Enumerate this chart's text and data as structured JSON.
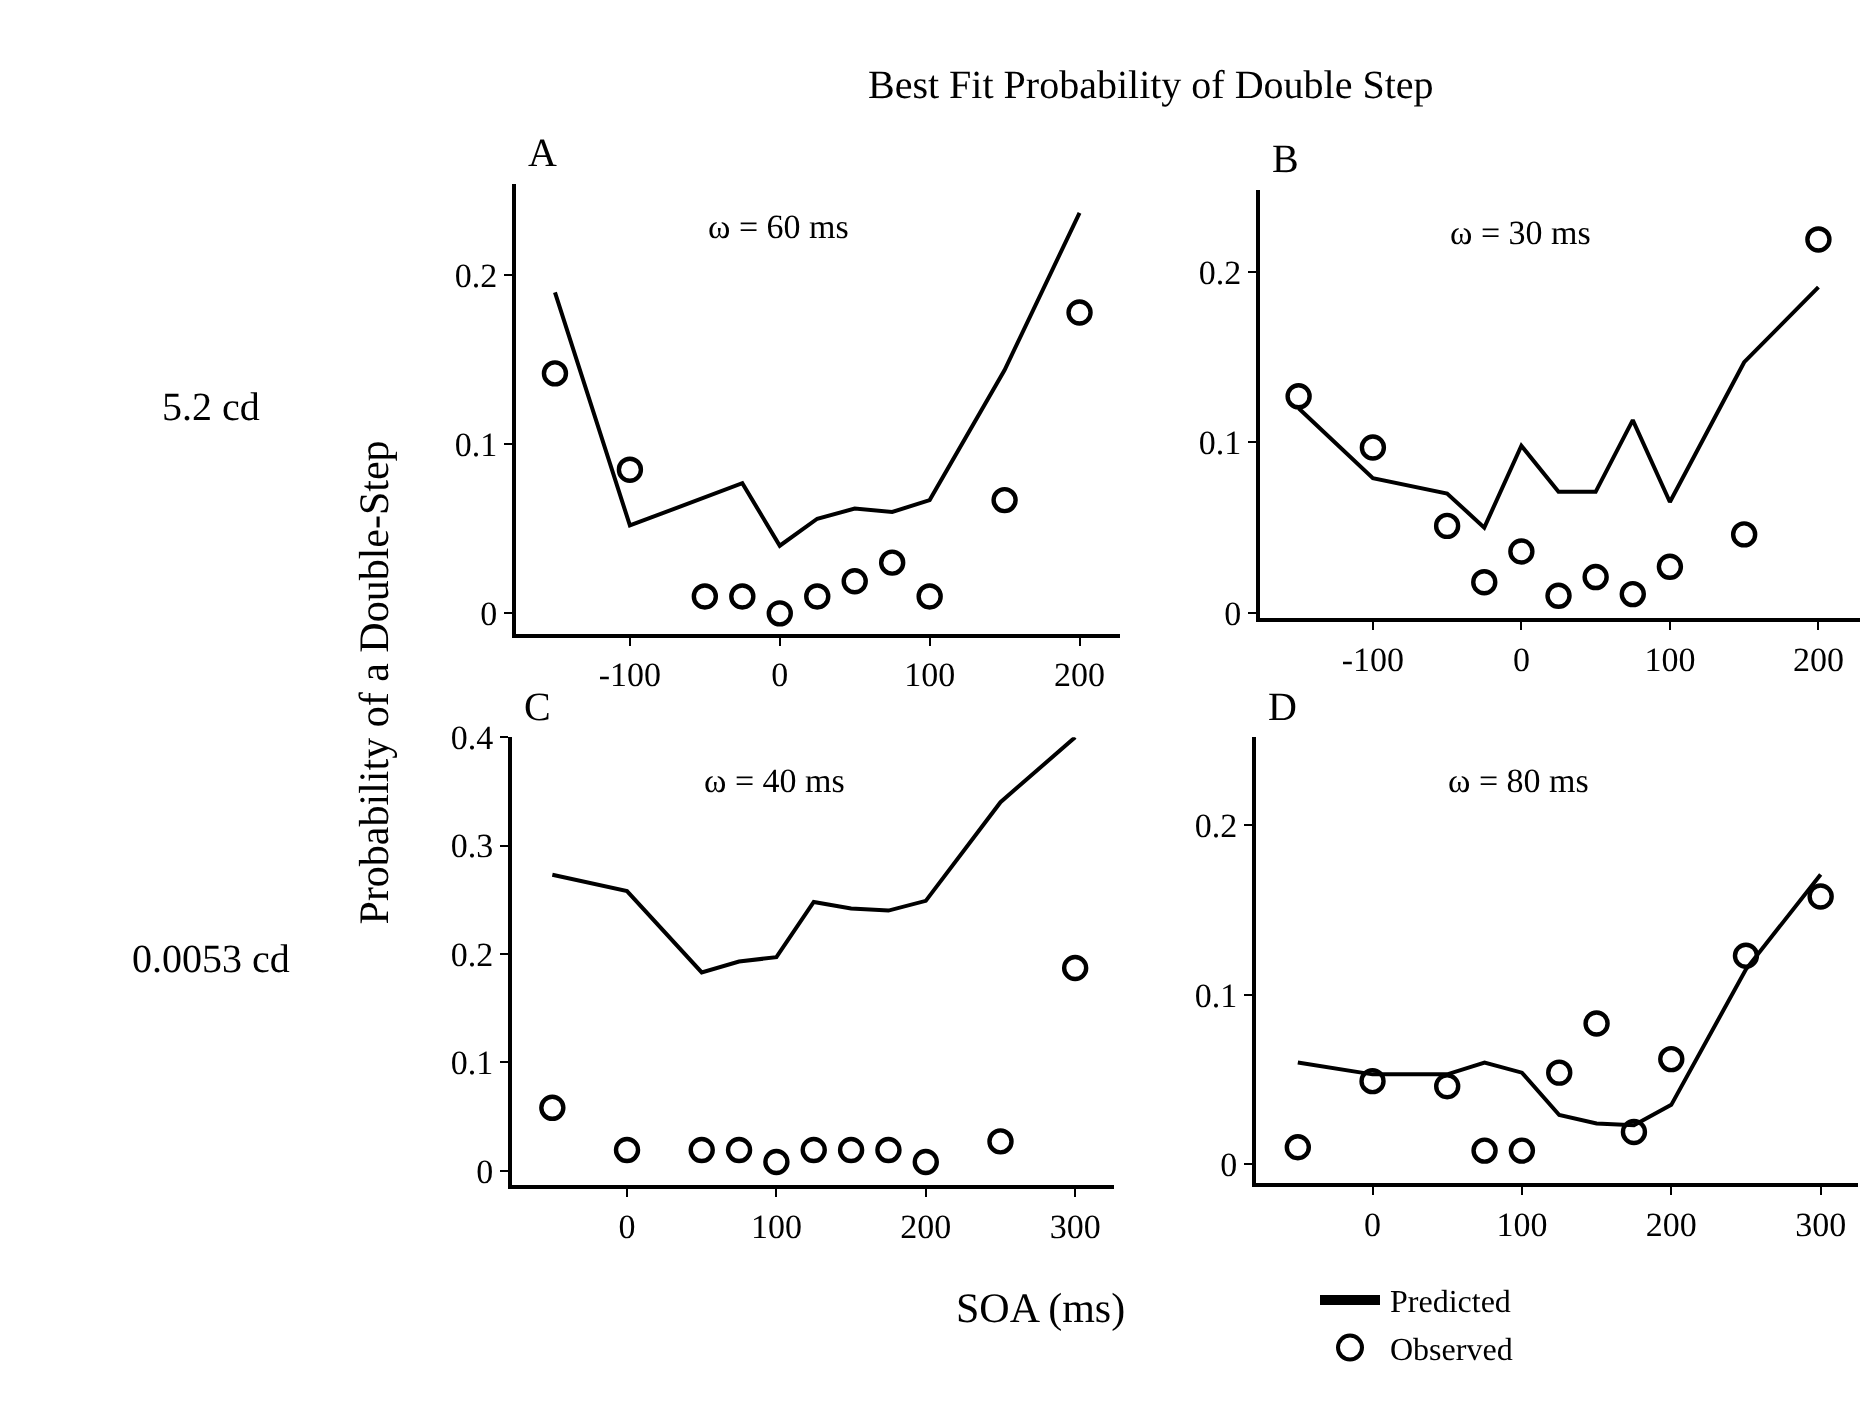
{
  "chart_data": [
    {
      "type": "line",
      "title": "Best Fit Probability of Double Step",
      "ylabel": "Probability of a Double-Step",
      "annotations": [
        "A",
        "ω = 60 ms",
        "5.2 cd"
      ],
      "legend": "bottom right",
      "xlim": [
        -176,
        227
      ],
      "xticks": [
        -100,
        0,
        100,
        200
      ],
      "ylim": [
        -0.012,
        0.254
      ],
      "yticks": [
        0,
        0.1,
        0.2
      ],
      "series": [
        {
          "name": "Predicted",
          "marker": "none",
          "color": "#000000",
          "x": [
            -150,
            -100,
            -25,
            0,
            25,
            50,
            75,
            100,
            150,
            200
          ],
          "values": [
            0.19,
            0.052,
            0.077,
            0.04,
            0.056,
            0.062,
            0.06,
            0.067,
            0.144,
            0.237
          ]
        },
        {
          "name": "Observed",
          "type": "scatter",
          "marker": "circle",
          "color": "#000000",
          "x": [
            -150,
            -100,
            -50,
            -25,
            0,
            25,
            50,
            75,
            100,
            150,
            200
          ],
          "values": [
            0.142,
            0.085,
            0.01,
            0.01,
            0.0,
            0.01,
            0.019,
            0.03,
            0.01,
            0.067,
            0.178
          ]
        }
      ]
    },
    {
      "type": "line",
      "annotations": [
        "B",
        "ω = 30 ms"
      ],
      "xlim": [
        -176,
        228
      ],
      "xticks": [
        -100,
        0,
        100,
        200
      ],
      "ylim": [
        -0.003,
        0.248
      ],
      "yticks": [
        0,
        0.1,
        0.2
      ],
      "series": [
        {
          "marker": "none",
          "color": "#000000",
          "x": [
            -150,
            -100,
            -50,
            -25,
            0,
            25,
            50,
            75,
            100,
            150,
            200
          ],
          "values": [
            0.12,
            0.079,
            0.07,
            0.05,
            0.098,
            0.071,
            0.071,
            0.113,
            0.065,
            0.147,
            0.191
          ]
        },
        {
          "type": "scatter",
          "marker": "circle",
          "color": "#000000",
          "x": [
            -150,
            -100,
            -50,
            -25,
            0,
            25,
            50,
            75,
            100,
            150,
            200
          ],
          "values": [
            0.127,
            0.097,
            0.051,
            0.018,
            0.036,
            0.01,
            0.021,
            0.011,
            0.027,
            0.046,
            0.219
          ]
        }
      ]
    },
    {
      "type": "line",
      "xlabel": "SOA (ms)",
      "annotations": [
        "C",
        "ω = 40 ms",
        "0.0053 cd"
      ],
      "xlim": [
        -77,
        326
      ],
      "xticks": [
        0,
        100,
        200,
        300
      ],
      "ylim": [
        -0.013,
        0.4
      ],
      "yticks": [
        0,
        0.1,
        0.2,
        0.3,
        0.4
      ],
      "series": [
        {
          "marker": "none",
          "color": "#000000",
          "x": [
            -50,
            0,
            50,
            75,
            100,
            125,
            150,
            175,
            200,
            250,
            300
          ],
          "values": [
            0.273,
            0.258,
            0.183,
            0.193,
            0.197,
            0.248,
            0.242,
            0.24,
            0.249,
            0.34,
            0.4
          ]
        },
        {
          "type": "scatter",
          "marker": "circle",
          "color": "#000000",
          "x": [
            -50,
            0,
            50,
            75,
            100,
            125,
            150,
            175,
            200,
            250,
            300
          ],
          "values": [
            0.058,
            0.019,
            0.019,
            0.019,
            0.008,
            0.019,
            0.019,
            0.019,
            0.008,
            0.027,
            0.187
          ]
        }
      ]
    },
    {
      "type": "line",
      "annotations": [
        "D",
        "ω = 80 ms"
      ],
      "xlim": [
        -78,
        325
      ],
      "xticks": [
        0,
        100,
        200,
        300
      ],
      "ylim": [
        -0.011,
        0.252
      ],
      "yticks": [
        0,
        0.1,
        0.2
      ],
      "series": [
        {
          "marker": "none",
          "color": "#000000",
          "x": [
            -50,
            0,
            50,
            75,
            100,
            125,
            150,
            175,
            200,
            250,
            300
          ],
          "values": [
            0.06,
            0.053,
            0.053,
            0.06,
            0.054,
            0.029,
            0.024,
            0.023,
            0.035,
            0.115,
            0.171
          ]
        },
        {
          "type": "scatter",
          "marker": "circle",
          "color": "#000000",
          "x": [
            -50,
            0,
            50,
            75,
            100,
            125,
            150,
            175,
            200,
            250,
            300
          ],
          "values": [
            0.01,
            0.049,
            0.046,
            0.008,
            0.008,
            0.054,
            0.083,
            0.019,
            0.062,
            0.123,
            0.158
          ]
        }
      ]
    }
  ]
}
